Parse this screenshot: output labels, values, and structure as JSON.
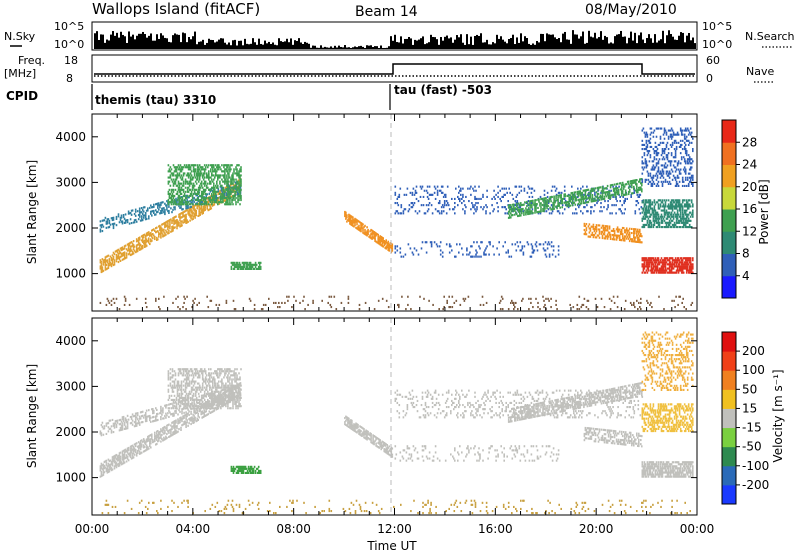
{
  "header": {
    "site": "Wallops Island (fitACF)",
    "beam": "Beam 14",
    "date": "08/May/2010"
  },
  "strip_labels": {
    "nsky": "N.Sky",
    "nsearch": "N.Search",
    "freq_line1": "Freq.",
    "freq_line2": "[MHz]",
    "nave": "Nave",
    "cpid": "CPID",
    "nsky_ticks": [
      "10^5",
      "10^0"
    ],
    "nsearch_ticks": [
      "10^5",
      "10^0"
    ],
    "freq_ticks": [
      "18",
      "8"
    ],
    "nave_ticks": [
      "60",
      "0"
    ]
  },
  "cpid_segments": [
    {
      "start": 0.0,
      "label": "themis (tau) 3310"
    },
    {
      "start": 12.0,
      "label": "tau (fast) -503"
    }
  ],
  "chart_data": [
    {
      "type": "heatmap",
      "title": "Power",
      "ylabel": "Slant Range [km]",
      "xlabel": "",
      "xlim": [
        0,
        24
      ],
      "ylim": [
        180,
        4500
      ],
      "yticks": [
        1000,
        2000,
        3000,
        4000
      ],
      "colorbar": {
        "label": "Power [dB]",
        "ticks": [
          "4",
          "8",
          "12",
          "16",
          "20",
          "24",
          "28"
        ],
        "colors": [
          "#1a1aff",
          "#2f5fb8",
          "#2e8a74",
          "#3fa050",
          "#c8d83a",
          "#f0a020",
          "#f07020",
          "#e82818"
        ]
      },
      "regions": [
        {
          "t0": 0.3,
          "t1": 5.9,
          "r0": 1000,
          "r1": 1300,
          "slope": 320,
          "color": "#e0a030",
          "density": 0.6
        },
        {
          "t0": 0.3,
          "t1": 5.9,
          "r0": 1900,
          "r1": 2200,
          "slope": 150,
          "color": "#2f7fa0",
          "density": 0.35
        },
        {
          "t0": 3.0,
          "t1": 5.9,
          "r0": 2500,
          "r1": 3400,
          "slope": 0,
          "color": "#3fa050",
          "density": 0.45
        },
        {
          "t0": 5.5,
          "t1": 6.7,
          "r0": 1080,
          "r1": 1230,
          "slope": 0,
          "color": "#3fa050",
          "density": 0.7
        },
        {
          "t0": 10.0,
          "t1": 11.9,
          "r0": 2150,
          "r1": 2350,
          "slope": -380,
          "color": "#f09020",
          "density": 0.7
        },
        {
          "t0": 12.0,
          "t1": 18.5,
          "r0": 1350,
          "r1": 1700,
          "slope": 0,
          "color": "#2f5fb8",
          "density": 0.12
        },
        {
          "t0": 12.0,
          "t1": 21.8,
          "r0": 2300,
          "r1": 2900,
          "slope": 0,
          "color": "#2f5fb8",
          "density": 0.14
        },
        {
          "t0": 16.5,
          "t1": 21.8,
          "r0": 2200,
          "r1": 2500,
          "slope": 110,
          "color": "#3fa050",
          "density": 0.5
        },
        {
          "t0": 19.5,
          "t1": 21.8,
          "r0": 1800,
          "r1": 2100,
          "slope": -60,
          "color": "#f09020",
          "density": 0.5
        },
        {
          "t0": 21.8,
          "t1": 23.8,
          "r0": 1000,
          "r1": 1350,
          "slope": 0,
          "color": "#e03020",
          "density": 0.75
        },
        {
          "t0": 21.8,
          "t1": 23.8,
          "r0": 2000,
          "r1": 2600,
          "slope": 0,
          "color": "#2e8a74",
          "density": 0.55
        },
        {
          "t0": 21.8,
          "t1": 23.8,
          "r0": 2900,
          "r1": 4200,
          "slope": 0,
          "color": "#2f5fb8",
          "density": 0.28
        },
        {
          "t0": 0.3,
          "t1": 23.8,
          "r0": 200,
          "r1": 480,
          "slope": 0,
          "color": "#7a5a40",
          "density": 0.05
        }
      ]
    },
    {
      "type": "heatmap",
      "title": "Velocity",
      "ylabel": "Slant Range [km]",
      "xlabel": "Time UT",
      "xlim": [
        0,
        24
      ],
      "ylim": [
        180,
        4500
      ],
      "yticks": [
        1000,
        2000,
        3000,
        4000
      ],
      "xticks": [
        "00:00",
        "04:00",
        "08:00",
        "12:00",
        "16:00",
        "20:00",
        "00:00"
      ],
      "colorbar": {
        "label": "Velocity [m s⁻¹]",
        "ticks": [
          "200",
          "100",
          "50",
          "15",
          "-15",
          "-50",
          "-100",
          "-200"
        ],
        "colors": [
          "#1a3aff",
          "#2a6ab8",
          "#2e8a50",
          "#7ad040",
          "#c0c0bc",
          "#f0c020",
          "#f08020",
          "#f04018",
          "#e01010"
        ]
      },
      "regions": [
        {
          "t0": 0.3,
          "t1": 5.9,
          "r0": 1000,
          "r1": 1300,
          "slope": 320,
          "color": "#c0c0bc",
          "density": 0.6
        },
        {
          "t0": 0.3,
          "t1": 5.9,
          "r0": 1900,
          "r1": 2200,
          "slope": 150,
          "color": "#c0c0bc",
          "density": 0.35
        },
        {
          "t0": 3.0,
          "t1": 5.9,
          "r0": 2500,
          "r1": 3400,
          "slope": 0,
          "color": "#c0c0bc",
          "density": 0.45
        },
        {
          "t0": 5.5,
          "t1": 6.7,
          "r0": 1080,
          "r1": 1230,
          "slope": 0,
          "color": "#3aa040",
          "density": 0.7
        },
        {
          "t0": 10.0,
          "t1": 11.9,
          "r0": 2150,
          "r1": 2350,
          "slope": -380,
          "color": "#c0c0bc",
          "density": 0.7
        },
        {
          "t0": 12.0,
          "t1": 18.5,
          "r0": 1350,
          "r1": 1700,
          "slope": 0,
          "color": "#c0c0bc",
          "density": 0.12
        },
        {
          "t0": 12.0,
          "t1": 21.8,
          "r0": 2300,
          "r1": 2900,
          "slope": 0,
          "color": "#c0c0bc",
          "density": 0.14
        },
        {
          "t0": 16.5,
          "t1": 21.8,
          "r0": 2200,
          "r1": 2500,
          "slope": 110,
          "color": "#c0c0bc",
          "density": 0.5
        },
        {
          "t0": 19.5,
          "t1": 21.8,
          "r0": 1800,
          "r1": 2100,
          "slope": -60,
          "color": "#c0c0bc",
          "density": 0.5
        },
        {
          "t0": 21.8,
          "t1": 23.8,
          "r0": 1000,
          "r1": 1350,
          "slope": 0,
          "color": "#c0c0bc",
          "density": 0.7
        },
        {
          "t0": 21.8,
          "t1": 23.8,
          "r0": 2000,
          "r1": 2600,
          "slope": 0,
          "color": "#f0c040",
          "density": 0.45
        },
        {
          "t0": 21.8,
          "t1": 23.8,
          "r0": 2900,
          "r1": 4200,
          "slope": 0,
          "color": "#f0b040",
          "density": 0.25
        },
        {
          "t0": 0.3,
          "t1": 23.8,
          "r0": 200,
          "r1": 480,
          "slope": 0,
          "color": "#c8a040",
          "density": 0.05
        }
      ]
    }
  ]
}
